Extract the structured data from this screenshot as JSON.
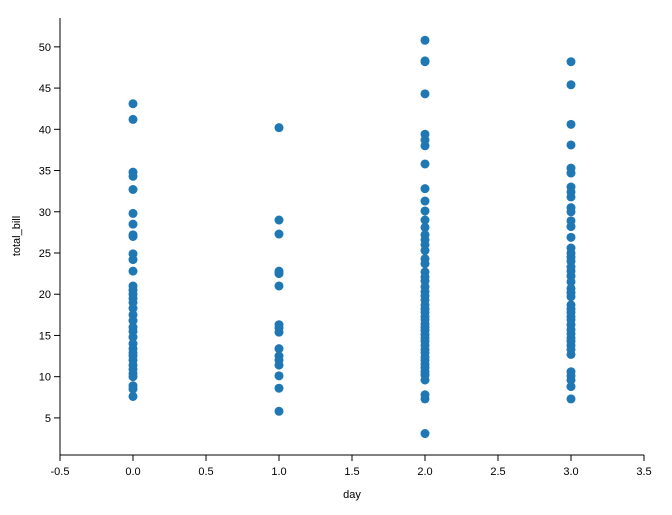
{
  "chart_data": {
    "type": "scatter",
    "title": "",
    "xlabel": "day",
    "ylabel": "total_bill",
    "xlim": [
      -0.5,
      3.5
    ],
    "ylim": [
      0.5,
      53.5
    ],
    "x_ticks": [
      -0.5,
      0.0,
      0.5,
      1.0,
      1.5,
      2.0,
      2.5,
      3.0,
      3.5
    ],
    "x_tick_labels": [
      "-0.5",
      "0.0",
      "0.5",
      "1.0",
      "1.5",
      "2.0",
      "2.5",
      "3.0",
      "3.5"
    ],
    "y_ticks": [
      5,
      10,
      15,
      20,
      25,
      30,
      35,
      40,
      45,
      50
    ],
    "y_tick_labels": [
      "5",
      "10",
      "15",
      "20",
      "25",
      "30",
      "35",
      "40",
      "45",
      "50"
    ],
    "grid": false,
    "legend": "none",
    "color": "#1f77b4",
    "series": [
      {
        "x": 0,
        "values": [
          43.1,
          41.2,
          34.8,
          34.3,
          32.7,
          29.8,
          28.5,
          27.2,
          27.0,
          24.9,
          24.2,
          22.8,
          21.0,
          20.5,
          20.0,
          19.5,
          19.0,
          18.3,
          17.5,
          16.8,
          16.0,
          15.5,
          14.8,
          14.0,
          13.4,
          12.9,
          12.5,
          12.0,
          11.4,
          10.9,
          10.4,
          10.0,
          8.9,
          8.5,
          7.6
        ]
      },
      {
        "x": 1,
        "values": [
          40.2,
          29.0,
          27.3,
          22.8,
          22.5,
          21.0,
          16.3,
          15.9,
          15.4,
          13.4,
          12.5,
          12.0,
          11.4,
          10.1,
          8.6,
          5.8
        ]
      },
      {
        "x": 2,
        "values": [
          50.8,
          48.3,
          48.2,
          44.3,
          39.4,
          38.7,
          38.0,
          35.8,
          32.8,
          31.3,
          30.1,
          29.0,
          28.1,
          27.2,
          26.6,
          26.0,
          25.3,
          24.3,
          23.7,
          22.7,
          22.1,
          21.6,
          20.9,
          20.3,
          19.8,
          19.3,
          18.7,
          18.2,
          17.8,
          17.3,
          16.9,
          16.4,
          16.0,
          15.6,
          15.1,
          14.7,
          14.3,
          13.8,
          13.3,
          12.9,
          12.4,
          12.0,
          11.5,
          11.1,
          10.6,
          10.2,
          9.6,
          7.8,
          7.3,
          3.1
        ]
      },
      {
        "x": 3,
        "values": [
          48.2,
          45.4,
          40.6,
          38.1,
          35.3,
          34.7,
          33.0,
          32.4,
          31.8,
          30.5,
          30.0,
          28.9,
          28.2,
          26.9,
          25.6,
          25.0,
          24.5,
          24.0,
          23.3,
          22.8,
          22.2,
          21.5,
          20.7,
          20.2,
          19.7,
          18.7,
          18.2,
          17.8,
          17.3,
          16.9,
          16.3,
          15.7,
          15.2,
          14.7,
          14.3,
          13.8,
          13.3,
          12.7,
          10.6,
          10.1,
          9.6,
          8.8,
          7.3
        ]
      }
    ]
  }
}
